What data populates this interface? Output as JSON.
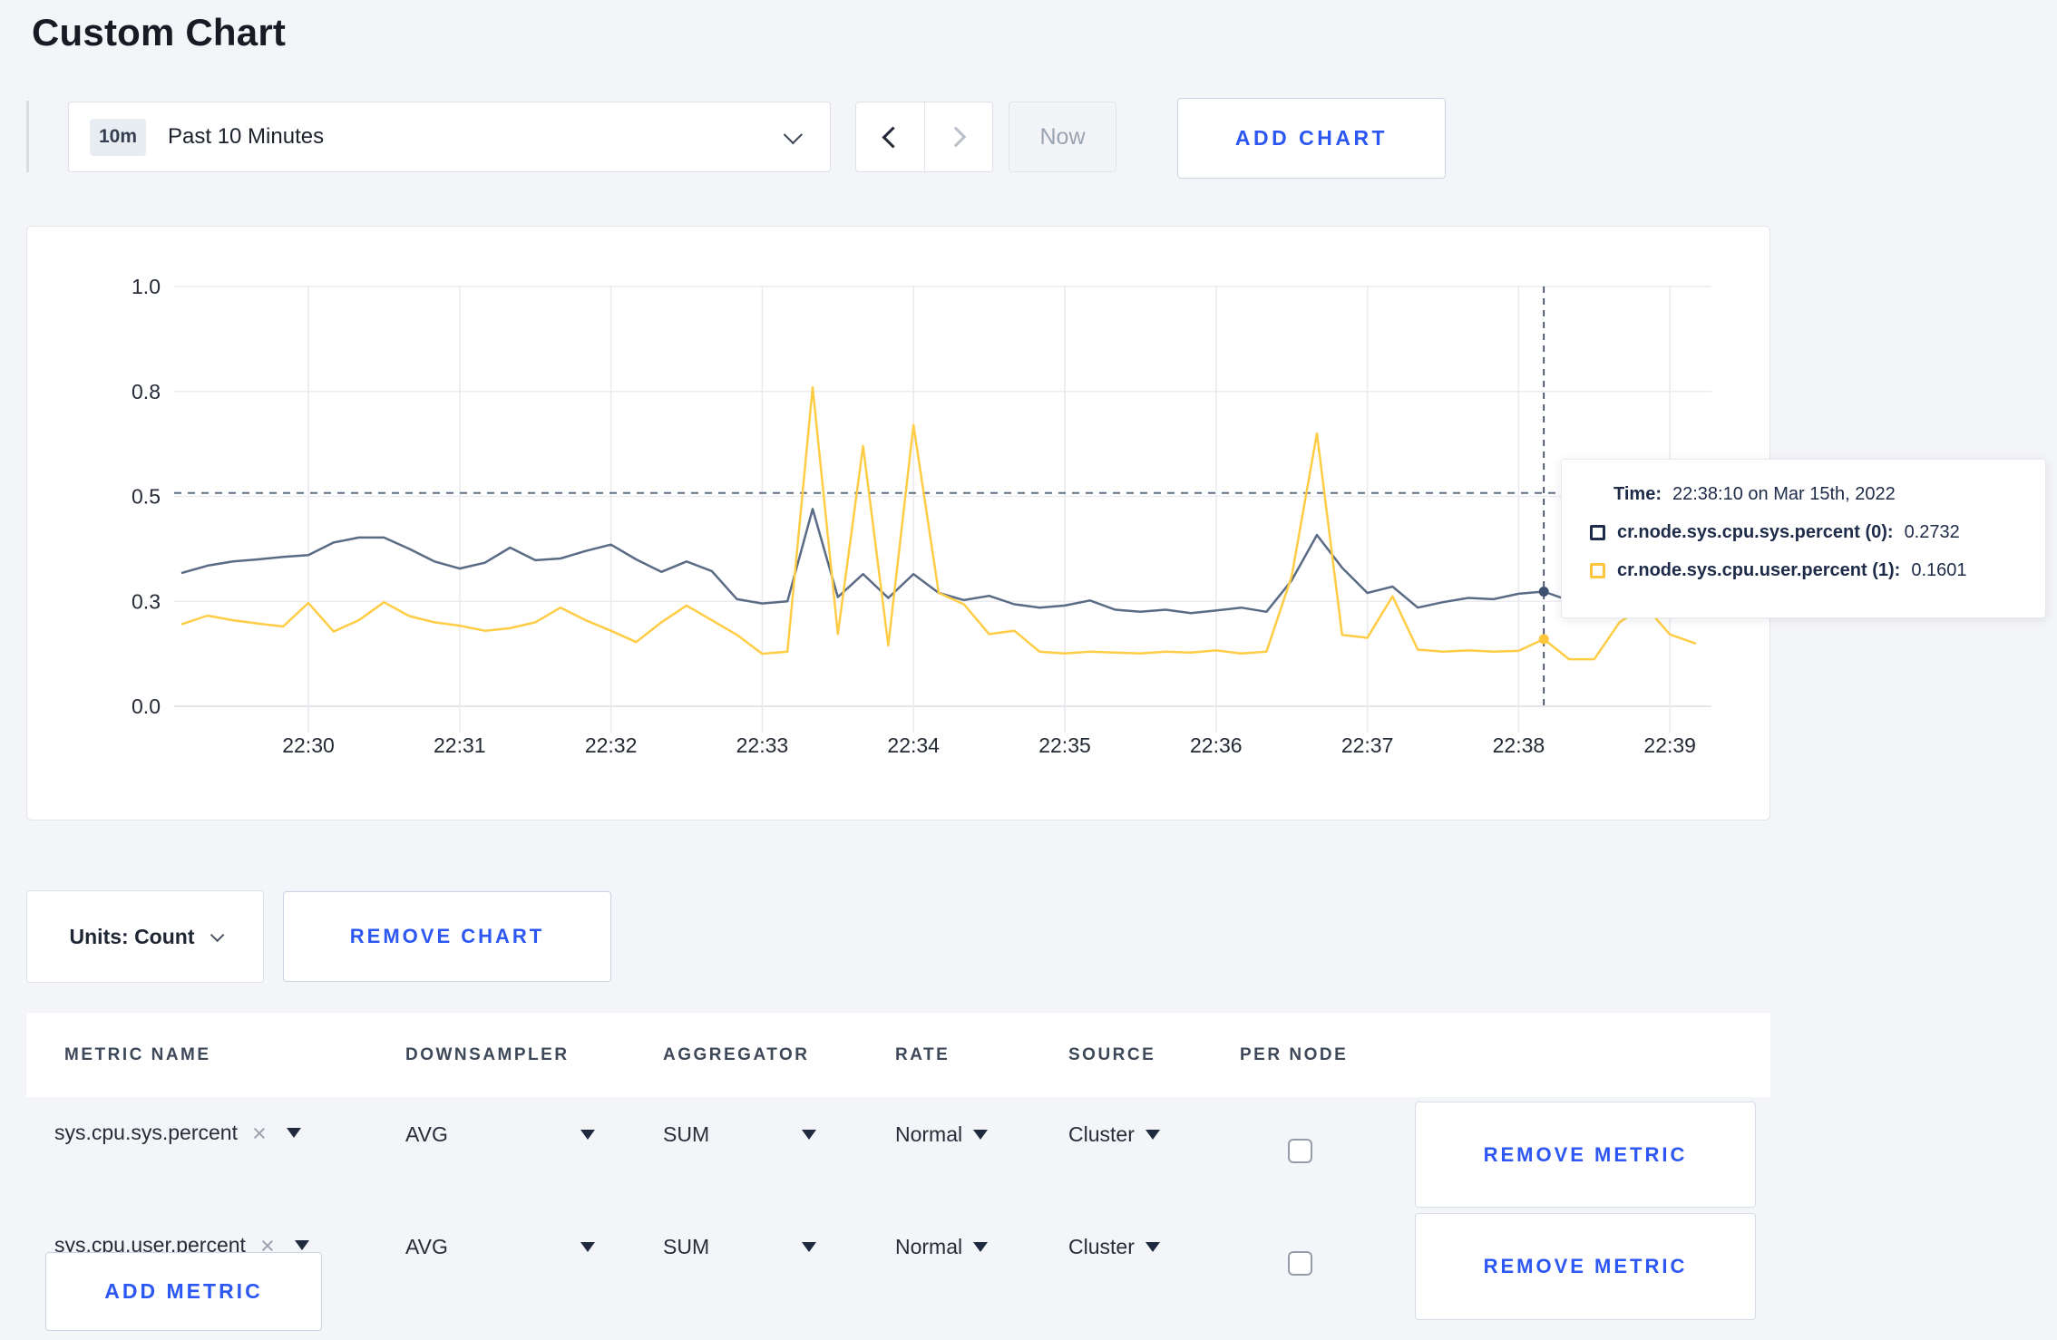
{
  "page": {
    "title": "Custom Chart"
  },
  "toolbar": {
    "timescale_badge": "10m",
    "timescale_label": "Past 10 Minutes",
    "now_label": "Now",
    "add_chart_label": "ADD CHART"
  },
  "chart_controls": {
    "units_label": "Units: Count",
    "remove_chart_label": "REMOVE CHART"
  },
  "tooltip": {
    "time_label": "Time:",
    "time_value": "22:38:10 on Mar 15th, 2022",
    "rows": [
      {
        "swatch_color": "#1f2b4a",
        "name": "cr.node.sys.cpu.sys.percent (0):",
        "value": "0.2732"
      },
      {
        "swatch_color": "#ffc53d",
        "name": "cr.node.sys.cpu.user.percent (1):",
        "value": "0.1601"
      }
    ]
  },
  "chart_data": {
    "type": "line",
    "title": "",
    "xlabel": "",
    "ylabel": "",
    "grid": true,
    "legend_position": "tooltip",
    "ylim": [
      0,
      1
    ],
    "y_tick_labels": [
      "0.0",
      "0.3",
      "0.5",
      "0.8",
      "1.0"
    ],
    "y_tick_values": [
      0,
      0.25,
      0.5,
      0.75,
      1
    ],
    "x_tick_labels": [
      "22:30",
      "22:31",
      "22:32",
      "22:33",
      "22:34",
      "22:35",
      "22:36",
      "22:37",
      "22:38",
      "22:39"
    ],
    "x_start_time": "22:29:10",
    "x_interval_seconds": 10,
    "guideline_value": 0.508,
    "crosshair_time": "22:38:10",
    "crosshair_index": 54,
    "series": [
      {
        "name": "cr.node.sys.cpu.sys.percent",
        "color": "#5a6b85",
        "dot_color": "#3e5070",
        "values": [
          0.318,
          0.335,
          0.345,
          0.35,
          0.356,
          0.36,
          0.39,
          0.402,
          0.402,
          0.375,
          0.345,
          0.328,
          0.342,
          0.378,
          0.348,
          0.352,
          0.37,
          0.385,
          0.35,
          0.32,
          0.345,
          0.322,
          0.255,
          0.245,
          0.25,
          0.47,
          0.26,
          0.315,
          0.258,
          0.315,
          0.27,
          0.253,
          0.263,
          0.243,
          0.235,
          0.24,
          0.252,
          0.23,
          0.225,
          0.23,
          0.222,
          0.228,
          0.235,
          0.225,
          0.3,
          0.408,
          0.33,
          0.27,
          0.285,
          0.235,
          0.248,
          0.258,
          0.255,
          0.268,
          0.2732,
          0.252,
          0.248,
          0.252,
          0.262,
          0.255,
          0.262
        ]
      },
      {
        "name": "cr.node.sys.cpu.user.percent",
        "color": "#ffcd45",
        "dot_color": "#ffc53d",
        "values": [
          0.196,
          0.216,
          0.205,
          0.197,
          0.19,
          0.246,
          0.178,
          0.205,
          0.248,
          0.215,
          0.2,
          0.192,
          0.18,
          0.186,
          0.2,
          0.235,
          0.205,
          0.18,
          0.153,
          0.2,
          0.24,
          0.205,
          0.17,
          0.125,
          0.13,
          0.76,
          0.172,
          0.62,
          0.145,
          0.67,
          0.27,
          0.243,
          0.172,
          0.18,
          0.13,
          0.126,
          0.13,
          0.128,
          0.126,
          0.13,
          0.128,
          0.133,
          0.126,
          0.13,
          0.31,
          0.65,
          0.17,
          0.163,
          0.262,
          0.135,
          0.13,
          0.133,
          0.13,
          0.132,
          0.1601,
          0.112,
          0.112,
          0.2,
          0.24,
          0.171,
          0.15
        ]
      }
    ]
  },
  "metrics_table": {
    "headers": [
      "METRIC NAME",
      "DOWNSAMPLER",
      "AGGREGATOR",
      "RATE",
      "SOURCE",
      "PER NODE"
    ],
    "rows": [
      {
        "metric": "sys.cpu.sys.percent",
        "downsampler": "AVG",
        "aggregator": "SUM",
        "rate": "Normal",
        "source": "Cluster",
        "per_node_checked": false,
        "remove_label": "REMOVE METRIC"
      },
      {
        "metric": "sys.cpu.user.percent",
        "downsampler": "AVG",
        "aggregator": "SUM",
        "rate": "Normal",
        "source": "Cluster",
        "per_node_checked": false,
        "remove_label": "REMOVE METRIC"
      }
    ],
    "close_icon": "×",
    "add_metric_label": "ADD METRIC"
  }
}
